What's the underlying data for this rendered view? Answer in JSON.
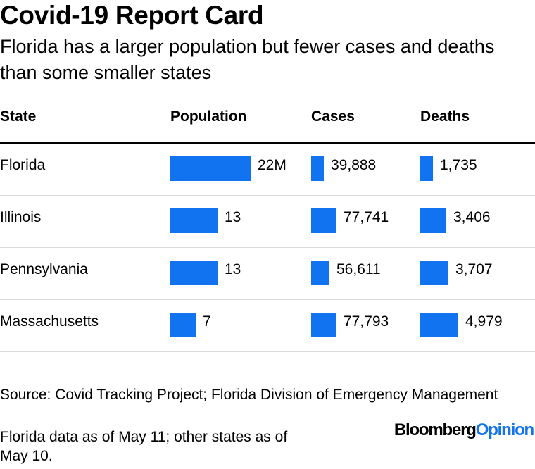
{
  "chart_data": {
    "type": "table",
    "title": "Covid-19 Report Card",
    "subtitle": "Florida has a larger population but fewer cases and deaths than some smaller states",
    "columns": [
      "State",
      "Population",
      "Cases",
      "Deaths"
    ],
    "rows": [
      {
        "state": "Florida",
        "population": 22,
        "population_label": "22M",
        "cases": 39888,
        "cases_label": "39,888",
        "deaths": 1735,
        "deaths_label": "1,735"
      },
      {
        "state": "Illinois",
        "population": 13,
        "population_label": "13",
        "cases": 77741,
        "cases_label": "77,741",
        "deaths": 3406,
        "deaths_label": "3,406"
      },
      {
        "state": "Pennsylvania",
        "population": 13,
        "population_label": "13",
        "cases": 56611,
        "cases_label": "56,611",
        "deaths": 3707,
        "deaths_label": "3,707"
      },
      {
        "state": "Massachusetts",
        "population": 7,
        "population_label": "7",
        "cases": 77793,
        "cases_label": "77,793",
        "deaths": 4979,
        "deaths_label": "4,979"
      }
    ],
    "population_unit": "M",
    "bar_color": "#1273f0"
  },
  "footer": {
    "source": "Source: Covid Tracking Project; Florida Division of Emergency Management",
    "note": "Florida data as of May 11; other states as of May 10.",
    "logo_brand": "Bloomberg",
    "logo_suffix": "Opinion"
  }
}
